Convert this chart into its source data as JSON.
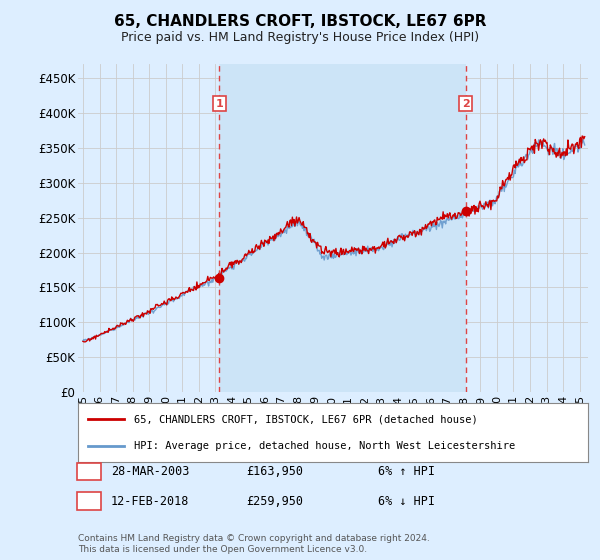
{
  "title": "65, CHANDLERS CROFT, IBSTOCK, LE67 6PR",
  "subtitle": "Price paid vs. HM Land Registry's House Price Index (HPI)",
  "ylabel_ticks": [
    "£0",
    "£50K",
    "£100K",
    "£150K",
    "£200K",
    "£250K",
    "£300K",
    "£350K",
    "£400K",
    "£450K"
  ],
  "ytick_vals": [
    0,
    50000,
    100000,
    150000,
    200000,
    250000,
    300000,
    350000,
    400000,
    450000
  ],
  "ylim": [
    0,
    470000
  ],
  "xlim_start": 1994.7,
  "xlim_end": 2025.5,
  "xticks": [
    1995,
    1996,
    1997,
    1998,
    1999,
    2000,
    2001,
    2002,
    2003,
    2004,
    2005,
    2006,
    2007,
    2008,
    2009,
    2010,
    2011,
    2012,
    2013,
    2014,
    2015,
    2016,
    2017,
    2018,
    2019,
    2020,
    2021,
    2022,
    2023,
    2024,
    2025
  ],
  "xtick_labels": [
    "95",
    "96",
    "97",
    "98",
    "99",
    "00",
    "01",
    "02",
    "03",
    "04",
    "05",
    "06",
    "07",
    "08",
    "09",
    "10",
    "11",
    "12",
    "13",
    "14",
    "15",
    "16",
    "17",
    "18",
    "19",
    "20",
    "21",
    "22",
    "23",
    "24",
    "25"
  ],
  "transaction1_x": 2003.23,
  "transaction1_y": 163950,
  "transaction1_label": "1",
  "transaction1_date": "28-MAR-2003",
  "transaction1_price": "£163,950",
  "transaction1_hpi": "6% ↑ HPI",
  "transaction2_x": 2018.12,
  "transaction2_y": 259950,
  "transaction2_label": "2",
  "transaction2_date": "12-FEB-2018",
  "transaction2_price": "£259,950",
  "transaction2_hpi": "6% ↓ HPI",
  "legend_line1": "65, CHANDLERS CROFT, IBSTOCK, LE67 6PR (detached house)",
  "legend_line2": "HPI: Average price, detached house, North West Leicestershire",
  "footer1": "Contains HM Land Registry data © Crown copyright and database right 2024.",
  "footer2": "This data is licensed under the Open Government Licence v3.0.",
  "line_color_red": "#cc0000",
  "line_color_blue": "#6699cc",
  "bg_color": "#ddeeff",
  "plot_bg": "#ddeeff",
  "shade_color": "#cce0f5",
  "vline_color": "#dd4444",
  "grid_color": "#cccccc",
  "label_box_color": "#dd4444"
}
